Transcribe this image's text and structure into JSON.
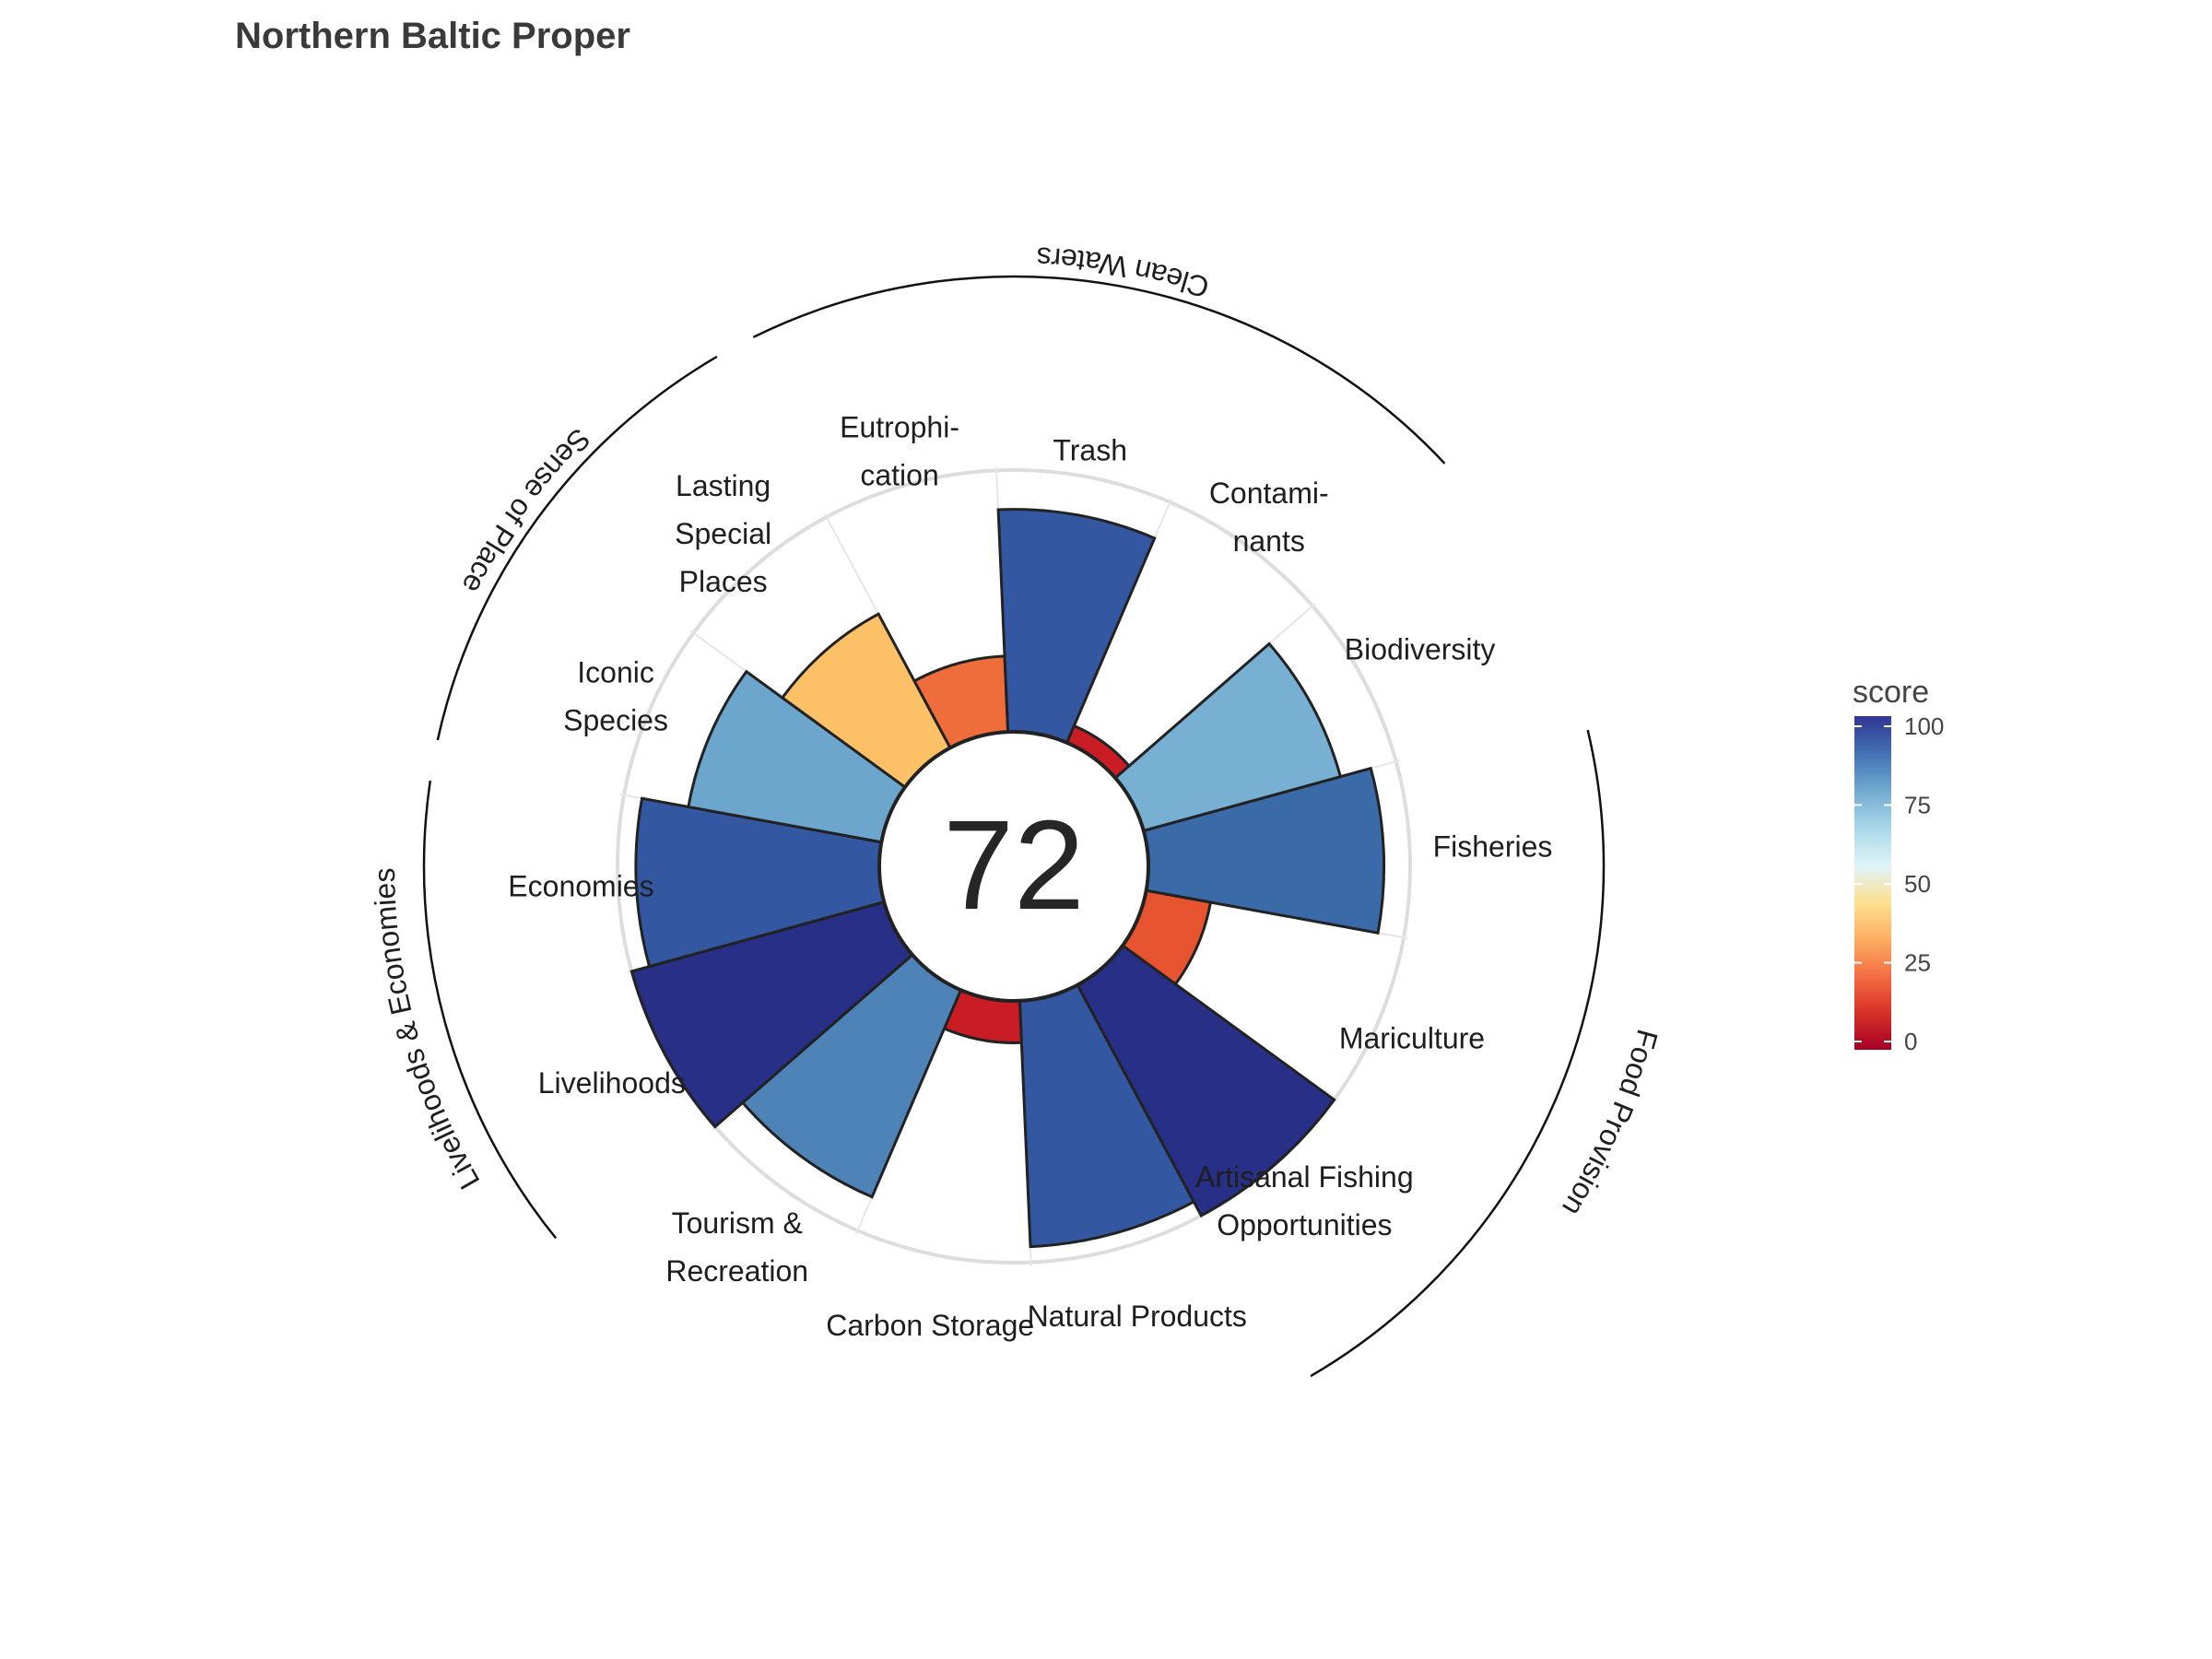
{
  "chart_data": {
    "type": "polar-bar",
    "title": "Northern Baltic Proper",
    "center_value": "72",
    "value_range": [
      0,
      100
    ],
    "goals": [
      {
        "label": [
          "Fisheries"
        ],
        "value": 90,
        "color": "#3b6aa8"
      },
      {
        "label": [
          "Mariculture"
        ],
        "value": 25,
        "color": "#e6532f"
      },
      {
        "label": [
          "Artisanal Fishing",
          "Opportunities"
        ],
        "value": 100,
        "color": "#272f87"
      },
      {
        "label": [
          "Natural Products"
        ],
        "value": 94,
        "color": "#3457a1"
      },
      {
        "label": [
          "Carbon Storage"
        ],
        "value": 16,
        "color": "#c91c24"
      },
      {
        "label": [
          "Tourism &",
          "Recreation"
        ],
        "value": 86,
        "color": "#4e83b8"
      },
      {
        "label": [
          "Livelihoods"
        ],
        "value": 100,
        "color": "#272f87"
      },
      {
        "label": [
          "Economies"
        ],
        "value": 93,
        "color": "#3457a1"
      },
      {
        "label": [
          "Iconic",
          "Species"
        ],
        "value": 75,
        "color": "#6da6cc"
      },
      {
        "label": [
          "Lasting",
          "Special",
          "Places"
        ],
        "value": 58,
        "color": "#fcc166"
      },
      {
        "label": [
          "Eutrophi-",
          "cation"
        ],
        "value": 29,
        "color": "#ef6d3b"
      },
      {
        "label": [
          "Trash"
        ],
        "value": 85,
        "color": "#3457a1"
      },
      {
        "label": [
          "Contami-",
          "nants"
        ],
        "value": 7,
        "color": "#c91c24"
      },
      {
        "label": [
          "Biodiversity"
        ],
        "value": 78,
        "color": "#78b0d3"
      }
    ],
    "groups": [
      {
        "name": "Food Provision"
      },
      {
        "name": "Livelihoods & Economies"
      },
      {
        "name": "Sense of Place"
      },
      {
        "name": "Clean Waters"
      }
    ],
    "legend": {
      "title": "score",
      "ticks": [
        "0",
        "25",
        "50",
        "75",
        "100"
      ],
      "tick_values": [
        0,
        25,
        50,
        75,
        100
      ],
      "colors": [
        "#a50026",
        "#d73027",
        "#f46d43",
        "#fdae61",
        "#fee090",
        "#e0f3f8",
        "#abd9e9",
        "#74add1",
        "#4575b4",
        "#313695"
      ]
    }
  }
}
